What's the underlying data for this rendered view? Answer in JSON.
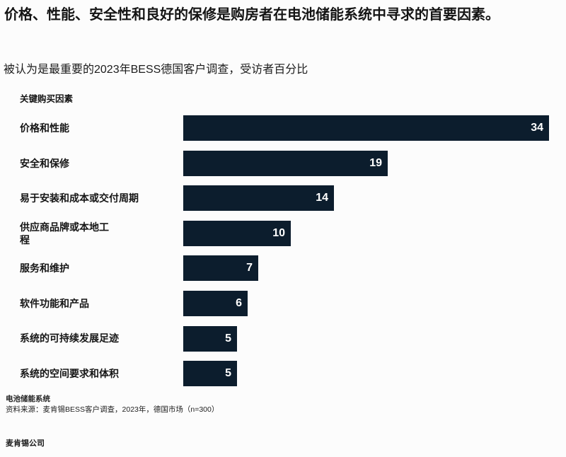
{
  "page": {
    "title": "价格、性能、安全性和良好的保修是购房者在电池储能系统中寻求的首要因素。",
    "subtitle": "被认为是最重要的2023年BESS德国客户调查，受访者百分比"
  },
  "chart_data": {
    "type": "bar",
    "orientation": "horizontal",
    "title": "被认为是最重要的2023年BESS德国客户调查，受访者百分比",
    "axis_label": "关键购买因素",
    "categories": [
      "价格和性能",
      "安全和保修",
      "易于安装和成本或交付周期",
      "供应商品牌或本地工\n程",
      "服务和维护",
      "软件功能和产品",
      "系统的可持续发展足迹",
      "系统的空间要求和体积"
    ],
    "values": [
      34,
      19,
      14,
      10,
      7,
      6,
      5,
      5
    ],
    "unit": "percent_of_respondents",
    "xlim": [
      0,
      34
    ],
    "grid": false,
    "legend": "none",
    "bar_color": "#0c1d2d",
    "value_label_color": "#ffffff"
  },
  "footer": {
    "subject": "电池储能系统",
    "source": "资料来源：麦肯锡BESS客户调查，2023年，德国市场（n=300）",
    "brand": "麦肯锡公司"
  }
}
